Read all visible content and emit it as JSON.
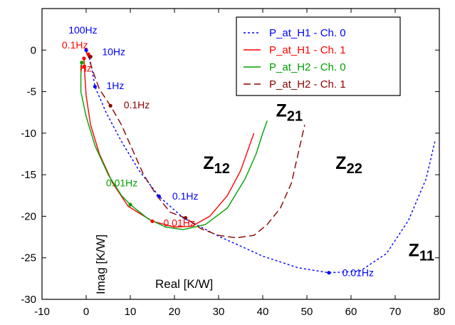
{
  "chart_data": {
    "type": "line",
    "title": "",
    "xlabel": "Real  [K/W]",
    "ylabel": "Imag  [K/W]",
    "xlim": [
      -10,
      80
    ],
    "ylim": [
      -30,
      5
    ],
    "x_ticks": [
      -10,
      0,
      10,
      20,
      30,
      40,
      50,
      60,
      70,
      80
    ],
    "y_ticks": [
      0,
      -5,
      -10,
      -15,
      -20,
      -25,
      -30
    ],
    "grid": false,
    "legend_position": "top-right",
    "colors": {
      "ch0_h1": "#0000ff",
      "ch1_h1": "#ff0000",
      "ch0_h2": "#00a000",
      "ch1_h2": "#8b0000"
    },
    "series": [
      {
        "name": "P_at_H1 - Ch. 0",
        "color": "#0000ff",
        "dash": "dotted",
        "points": [
          [
            0.0,
            0.0
          ],
          [
            0.6,
            -0.6
          ],
          [
            1.2,
            -2.0
          ],
          [
            2.0,
            -4.4
          ],
          [
            4.5,
            -7.5
          ],
          [
            8.0,
            -11.0
          ],
          [
            12.0,
            -14.5
          ],
          [
            16.5,
            -17.6
          ],
          [
            22.0,
            -20.2
          ],
          [
            30.0,
            -22.4
          ],
          [
            40.0,
            -24.8
          ],
          [
            48.0,
            -26.2
          ],
          [
            55.0,
            -26.8
          ],
          [
            62.0,
            -26.6
          ],
          [
            68.0,
            -24.5
          ],
          [
            73.0,
            -20.5
          ],
          [
            77.0,
            -15.5
          ],
          [
            79.0,
            -11.0
          ]
        ]
      },
      {
        "name": "P_at_H1 - Ch. 1",
        "color": "#ff0000",
        "dash": "solid",
        "points": [
          [
            -0.5,
            -1.0
          ],
          [
            -0.3,
            -3.0
          ],
          [
            0.0,
            -5.5
          ],
          [
            1.0,
            -9.0
          ],
          [
            3.0,
            -12.5
          ],
          [
            6.0,
            -16.0
          ],
          [
            9.5,
            -18.8
          ],
          [
            15.0,
            -20.6
          ],
          [
            20.0,
            -21.3
          ],
          [
            24.0,
            -21.2
          ],
          [
            28.0,
            -20.0
          ],
          [
            32.0,
            -17.5
          ],
          [
            35.0,
            -14.5
          ],
          [
            37.0,
            -11.5
          ],
          [
            38.0,
            -10.0
          ]
        ]
      },
      {
        "name": "P_at_H2 - Ch. 0",
        "color": "#00a000",
        "dash": "solid",
        "points": [
          [
            -1.0,
            -1.5
          ],
          [
            -1.2,
            -3.0
          ],
          [
            -1.2,
            -5.0
          ],
          [
            0.0,
            -8.0
          ],
          [
            2.0,
            -11.5
          ],
          [
            5.0,
            -15.0
          ],
          [
            8.0,
            -17.5
          ],
          [
            10.0,
            -18.6
          ],
          [
            14.0,
            -20.3
          ],
          [
            18.0,
            -21.3
          ],
          [
            22.0,
            -21.6
          ],
          [
            27.0,
            -21.0
          ],
          [
            32.0,
            -19.0
          ],
          [
            36.0,
            -15.5
          ],
          [
            38.5,
            -12.5
          ],
          [
            40.0,
            -10.0
          ],
          [
            41.0,
            -8.5
          ]
        ]
      },
      {
        "name": "P_at_H2 - Ch. 1",
        "color": "#8b0000",
        "dash": "dashed",
        "points": [
          [
            0.0,
            -0.2
          ],
          [
            0.5,
            -0.8
          ],
          [
            1.5,
            -2.5
          ],
          [
            3.0,
            -4.7
          ],
          [
            5.5,
            -6.7
          ],
          [
            8.0,
            -9.0
          ],
          [
            10.5,
            -12.0
          ],
          [
            13.0,
            -15.0
          ],
          [
            16.0,
            -17.5
          ],
          [
            19.0,
            -19.5
          ],
          [
            22.5,
            -20.2
          ],
          [
            26.0,
            -21.5
          ],
          [
            30.0,
            -22.3
          ],
          [
            34.0,
            -22.6
          ],
          [
            38.0,
            -22.3
          ],
          [
            41.0,
            -21.0
          ],
          [
            44.0,
            -19.0
          ],
          [
            46.5,
            -16.0
          ],
          [
            48.0,
            -12.5
          ],
          [
            49.5,
            -9.0
          ]
        ]
      }
    ],
    "markers": [
      {
        "x": 0.0,
        "y": 0.0,
        "color": "#0000ff",
        "size": "small"
      },
      {
        "x": 0.5,
        "y": -0.5,
        "color": "#ff0000",
        "size": "small"
      },
      {
        "x": 1.0,
        "y": -0.8,
        "color": "#8b0000",
        "size": "small"
      },
      {
        "x": -0.5,
        "y": -1.0,
        "color": "#ff0000",
        "size": "small"
      },
      {
        "x": -1.0,
        "y": -1.5,
        "color": "#00a000",
        "size": "small"
      },
      {
        "x": -0.5,
        "y": -2.0,
        "color": "#ff0000",
        "size": "small"
      },
      {
        "x": 2.0,
        "y": -4.4,
        "color": "#0000ff",
        "size": "small"
      },
      {
        "x": 5.5,
        "y": -6.7,
        "color": "#8b0000",
        "size": "small"
      },
      {
        "x": 10.0,
        "y": -18.6,
        "color": "#00a000",
        "size": "small"
      },
      {
        "x": 16.5,
        "y": -17.6,
        "color": "#0000ff",
        "size": "small"
      },
      {
        "x": 15.0,
        "y": -20.6,
        "color": "#ff0000",
        "size": "small"
      },
      {
        "x": 22.5,
        "y": -20.2,
        "color": "#8b0000",
        "size": "small"
      },
      {
        "x": 55.0,
        "y": -26.8,
        "color": "#0000ff",
        "size": "small"
      }
    ],
    "annotations": [
      {
        "text": "100Hz",
        "x": -4.0,
        "y": 2.0,
        "color": "#0000ff"
      },
      {
        "text": "0.1Hz",
        "x": -5.5,
        "y": 0.2,
        "color": "#ff0000"
      },
      {
        "text": "10Hz",
        "x": 3.6,
        "y": -0.6,
        "color": "#0000ff"
      },
      {
        "text": "Hz",
        "x": -1.5,
        "y": -2.6,
        "color": "#ff0000"
      },
      {
        "text": "1Hz",
        "x": 4.6,
        "y": -4.7,
        "color": "#0000ff"
      },
      {
        "text": "0.1Hz",
        "x": 8.5,
        "y": -7.0,
        "color": "#8b0000"
      },
      {
        "text": "0.01Hz",
        "x": 4.5,
        "y": -16.4,
        "color": "#00a000"
      },
      {
        "text": "0.1Hz",
        "x": 19.5,
        "y": -18.0,
        "color": "#0000ff"
      },
      {
        "text": "0.01Hz",
        "x": 17.5,
        "y": -21.2,
        "color": "#ff0000"
      },
      {
        "text": "0.01Hz",
        "x": 58.0,
        "y": -27.2,
        "color": "#0000ff"
      }
    ],
    "curve_labels": [
      {
        "main": "Z",
        "sub": "21",
        "x": 43.0,
        "y": -8.0
      },
      {
        "main": "Z",
        "sub": "12",
        "x": 26.5,
        "y": -14.3
      },
      {
        "main": "Z",
        "sub": "22",
        "x": 56.5,
        "y": -14.3
      },
      {
        "main": "Z",
        "sub": "11",
        "x": 73.0,
        "y": -24.8
      }
    ]
  }
}
